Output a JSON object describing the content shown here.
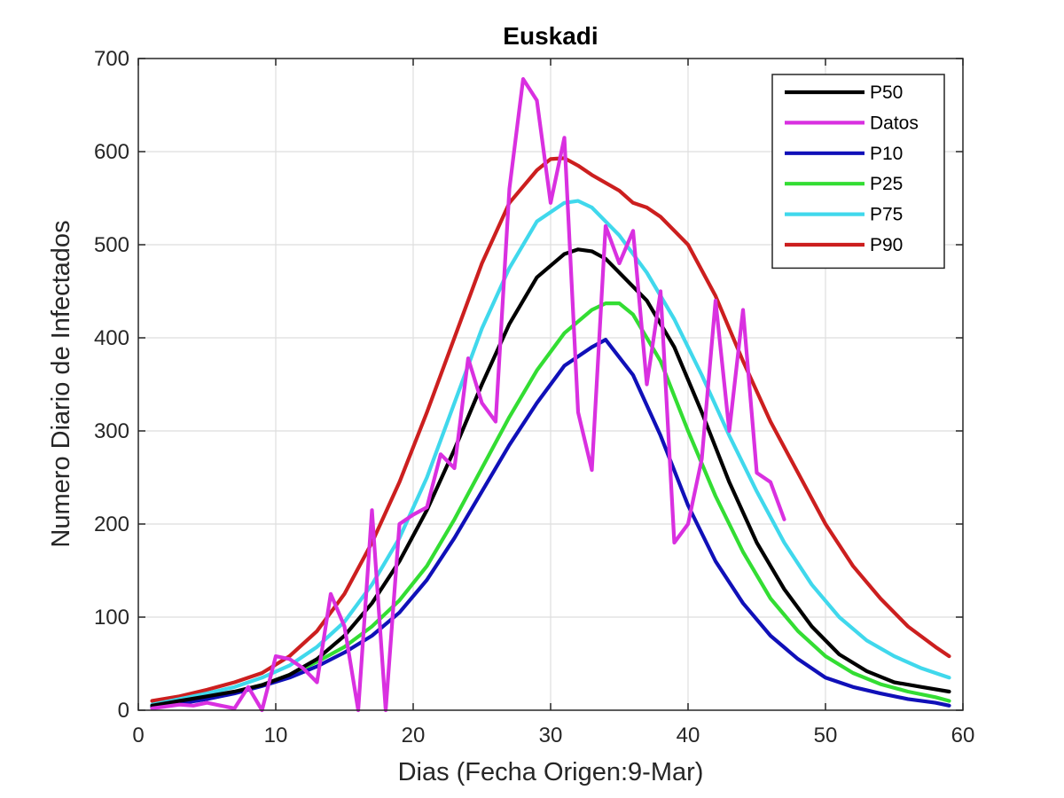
{
  "chart_data": {
    "type": "line",
    "title": "Euskadi",
    "xlabel": "Dias (Fecha Origen:9-Mar)",
    "ylabel": "Numero Diario de Infectados",
    "xlim": [
      0,
      60
    ],
    "ylim": [
      0,
      700
    ],
    "xticks": [
      0,
      10,
      20,
      30,
      40,
      50,
      60
    ],
    "yticks": [
      0,
      100,
      200,
      300,
      400,
      500,
      600,
      700
    ],
    "xtick_labels": [
      "0",
      "10",
      "20",
      "30",
      "40",
      "50",
      "60"
    ],
    "ytick_labels": [
      "0",
      "100",
      "200",
      "300",
      "400",
      "500",
      "600",
      "700"
    ],
    "grid": true,
    "legend_position": "top-right",
    "series": [
      {
        "name": "P50",
        "color": "#000000",
        "x": [
          1,
          3,
          5,
          7,
          9,
          11,
          13,
          15,
          17,
          19,
          21,
          23,
          25,
          27,
          29,
          31,
          32,
          33,
          34,
          35,
          37,
          39,
          41,
          43,
          45,
          47,
          49,
          51,
          53,
          55,
          57,
          59
        ],
        "y": [
          5,
          10,
          15,
          20,
          27,
          38,
          55,
          80,
          115,
          160,
          215,
          280,
          350,
          415,
          465,
          490,
          495,
          493,
          485,
          470,
          440,
          390,
          320,
          245,
          180,
          130,
          90,
          60,
          42,
          30,
          25,
          20
        ]
      },
      {
        "name": " Datos",
        "color": "#d930e0",
        "x": [
          1,
          2,
          3,
          4,
          5,
          6,
          7,
          8,
          9,
          10,
          11,
          12,
          13,
          14,
          15,
          16,
          17,
          18,
          19,
          20,
          21,
          22,
          23,
          24,
          25,
          26,
          27,
          28,
          29,
          30,
          31,
          32,
          33,
          34,
          35,
          36,
          37,
          38,
          39,
          40,
          41,
          42,
          43,
          44,
          45,
          46,
          47
        ],
        "y": [
          2,
          4,
          6,
          5,
          8,
          5,
          2,
          25,
          0,
          58,
          55,
          45,
          30,
          125,
          90,
          0,
          215,
          0,
          200,
          210,
          218,
          275,
          260,
          378,
          330,
          310,
          560,
          678,
          655,
          545,
          615,
          320,
          258,
          520,
          480,
          515,
          350,
          450,
          180,
          200,
          270,
          440,
          300,
          430,
          255,
          245,
          205
        ]
      },
      {
        "name": "P10",
        "color": "#1010b8",
        "x": [
          1,
          3,
          5,
          7,
          9,
          11,
          13,
          15,
          17,
          19,
          21,
          23,
          25,
          27,
          29,
          31,
          33,
          34,
          36,
          38,
          40,
          42,
          44,
          46,
          48,
          50,
          52,
          54,
          56,
          58,
          59
        ],
        "y": [
          3,
          7,
          12,
          18,
          26,
          35,
          47,
          62,
          80,
          105,
          140,
          185,
          235,
          285,
          330,
          370,
          390,
          398,
          360,
          295,
          220,
          160,
          115,
          80,
          55,
          35,
          25,
          18,
          12,
          8,
          5
        ]
      },
      {
        "name": "P25",
        "color": "#33dd33",
        "x": [
          1,
          3,
          5,
          7,
          9,
          11,
          13,
          15,
          17,
          19,
          21,
          23,
          25,
          27,
          29,
          31,
          33,
          34,
          35,
          36,
          38,
          40,
          42,
          44,
          46,
          48,
          50,
          52,
          54,
          56,
          58,
          59
        ],
        "y": [
          4,
          8,
          13,
          19,
          27,
          38,
          52,
          68,
          90,
          118,
          155,
          205,
          260,
          315,
          365,
          405,
          430,
          437,
          437,
          425,
          375,
          300,
          230,
          170,
          120,
          85,
          58,
          40,
          28,
          20,
          14,
          10
        ]
      },
      {
        "name": "P75",
        "color": "#40d8ec",
        "x": [
          1,
          3,
          5,
          7,
          9,
          11,
          13,
          15,
          17,
          19,
          21,
          23,
          25,
          27,
          29,
          31,
          32,
          33,
          35,
          37,
          39,
          41,
          43,
          45,
          47,
          49,
          51,
          53,
          55,
          57,
          59
        ],
        "y": [
          6,
          12,
          18,
          25,
          35,
          48,
          68,
          95,
          135,
          185,
          250,
          330,
          410,
          475,
          525,
          545,
          547,
          540,
          510,
          470,
          420,
          360,
          295,
          235,
          180,
          135,
          100,
          75,
          58,
          45,
          35
        ]
      },
      {
        "name": "P90",
        "color": "#cc1f1f",
        "x": [
          1,
          3,
          5,
          7,
          9,
          11,
          13,
          15,
          17,
          19,
          21,
          23,
          25,
          27,
          29,
          30,
          31,
          32,
          33,
          35,
          36,
          37,
          38,
          40,
          42,
          44,
          46,
          48,
          50,
          52,
          54,
          56,
          58,
          59
        ],
        "y": [
          10,
          15,
          22,
          30,
          40,
          58,
          85,
          125,
          180,
          245,
          320,
          400,
          480,
          545,
          580,
          592,
          593,
          585,
          575,
          558,
          545,
          540,
          530,
          500,
          445,
          375,
          310,
          255,
          200,
          155,
          120,
          90,
          68,
          58
        ]
      }
    ]
  }
}
